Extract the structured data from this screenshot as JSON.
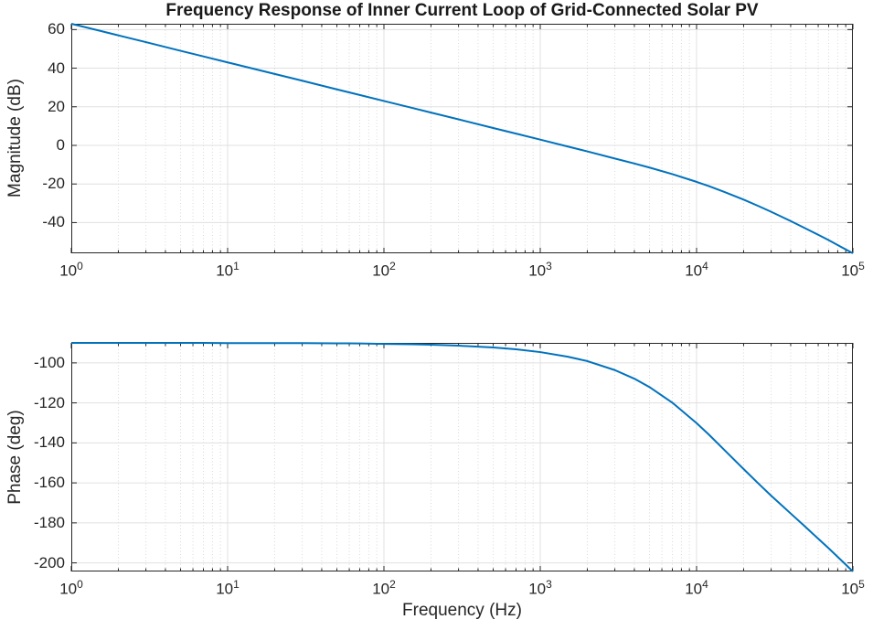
{
  "chart_data": {
    "type": "line",
    "title": "Frequency Response of Inner Current Loop of Grid-Connected Solar PV",
    "xlabel": "Frequency (Hz)",
    "x_scale": "log",
    "x_range": [
      1,
      100000
    ],
    "grid": true,
    "minor_grid_x": true,
    "legend": "none",
    "colors": {
      "line": "#0072BD",
      "axis": "#262626",
      "text": "#262626",
      "title": "#1a1a1a",
      "grid_major": "#e0e0e0",
      "grid_minor": "#d9d9d9",
      "background": "#ffffff"
    },
    "x_ticks": [
      {
        "value": 1,
        "base": "10",
        "exp": "0"
      },
      {
        "value": 10,
        "base": "10",
        "exp": "1"
      },
      {
        "value": 100,
        "base": "10",
        "exp": "2"
      },
      {
        "value": 1000,
        "base": "10",
        "exp": "3"
      },
      {
        "value": 10000,
        "base": "10",
        "exp": "4"
      },
      {
        "value": 100000,
        "base": "10",
        "exp": "5"
      }
    ],
    "x_minor_mantissas": [
      2,
      3,
      4,
      5,
      6,
      7,
      8,
      9
    ],
    "x": [
      1,
      1.5,
      2,
      3,
      5,
      7,
      10,
      15,
      20,
      30,
      50,
      70,
      100,
      150,
      200,
      300,
      500,
      700,
      1000,
      1500,
      2000,
      3000,
      4000,
      5000,
      7000,
      10000,
      12000,
      15000,
      20000,
      25000,
      30000,
      40000,
      50000,
      60000,
      70000,
      85000,
      100000
    ],
    "subplots": [
      {
        "id": "magnitude",
        "ylabel": "Magnitude (dB)",
        "ylim": [
          -55.9,
          63
        ],
        "y_ticks": [
          60,
          40,
          20,
          0,
          -20,
          -40
        ],
        "y": [
          63,
          59.5,
          57,
          53.5,
          49,
          46.1,
          43,
          39.5,
          37,
          33.5,
          29,
          26.1,
          23,
          19.5,
          17,
          13.5,
          9,
          6.1,
          3,
          -0.6,
          -3.1,
          -6.8,
          -9.4,
          -11.5,
          -14.9,
          -18.9,
          -21.1,
          -24.1,
          -28.1,
          -31.5,
          -34.4,
          -39.2,
          -43.1,
          -46.3,
          -49.1,
          -52.8,
          -55.9
        ]
      },
      {
        "id": "phase",
        "ylabel": "Phase (deg)",
        "ylim": [
          -204.3,
          -90
        ],
        "y_ticks": [
          -100,
          -120,
          -140,
          -160,
          -180,
          -200
        ],
        "y": [
          -90,
          -90,
          -90,
          -90,
          -90,
          -90,
          -90.1,
          -90.1,
          -90.1,
          -90.1,
          -90.2,
          -90.3,
          -90.5,
          -90.7,
          -90.9,
          -91.4,
          -92.3,
          -93.2,
          -94.6,
          -96.9,
          -99.1,
          -103.6,
          -107.9,
          -112.1,
          -119.9,
          -130.1,
          -135.9,
          -143.4,
          -153.1,
          -160.5,
          -166.4,
          -175.3,
          -182.2,
          -187.9,
          -192.7,
          -199,
          -204.3
        ]
      }
    ]
  }
}
